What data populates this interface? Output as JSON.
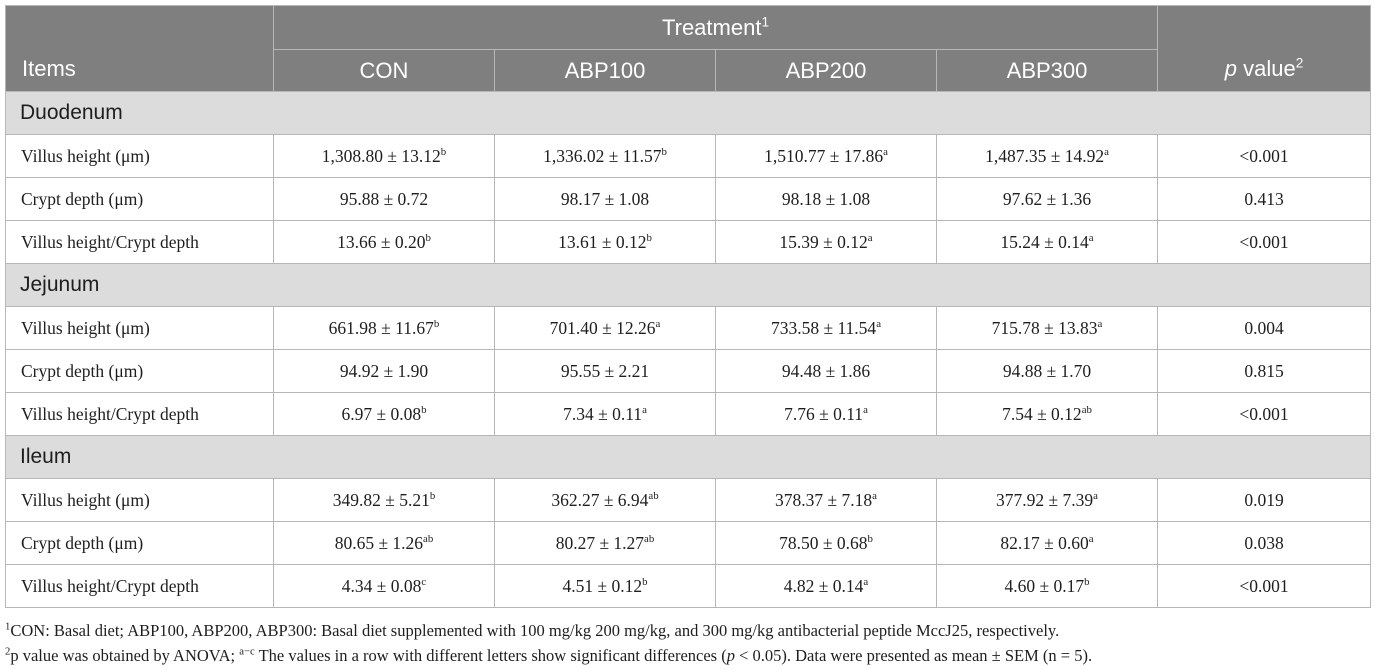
{
  "table": {
    "header": {
      "items_label": "Items",
      "treatment_label": "Treatment",
      "treatment_sup": "1",
      "groups": [
        "CON",
        "ABP100",
        "ABP200",
        "ABP300"
      ],
      "pvalue_italic": "p",
      "pvalue_label": " value",
      "pvalue_sup": "2"
    },
    "sections": [
      {
        "name": "Duodenum",
        "rows": [
          {
            "item": "Villus height (μm)",
            "cells": [
              {
                "v": "1,308.80 ± 13.12",
                "s": "b"
              },
              {
                "v": "1,336.02 ± 11.57",
                "s": "b"
              },
              {
                "v": "1,510.77 ± 17.86",
                "s": "a"
              },
              {
                "v": "1,487.35 ± 14.92",
                "s": "a"
              }
            ],
            "p": "<0.001"
          },
          {
            "item": "Crypt depth (μm)",
            "cells": [
              {
                "v": "95.88 ± 0.72",
                "s": ""
              },
              {
                "v": "98.17 ± 1.08",
                "s": ""
              },
              {
                "v": "98.18 ± 1.08",
                "s": ""
              },
              {
                "v": "97.62 ± 1.36",
                "s": ""
              }
            ],
            "p": "0.413"
          },
          {
            "item": "Villus height/Crypt depth",
            "cells": [
              {
                "v": "13.66 ± 0.20",
                "s": "b"
              },
              {
                "v": "13.61 ± 0.12",
                "s": "b"
              },
              {
                "v": "15.39 ± 0.12",
                "s": "a"
              },
              {
                "v": "15.24 ± 0.14",
                "s": "a"
              }
            ],
            "p": "<0.001"
          }
        ]
      },
      {
        "name": "Jejunum",
        "rows": [
          {
            "item": "Villus height (μm)",
            "cells": [
              {
                "v": "661.98 ± 11.67",
                "s": "b"
              },
              {
                "v": "701.40 ± 12.26",
                "s": "a"
              },
              {
                "v": "733.58 ± 11.54",
                "s": "a"
              },
              {
                "v": "715.78 ± 13.83",
                "s": "a"
              }
            ],
            "p": "0.004"
          },
          {
            "item": "Crypt depth (μm)",
            "cells": [
              {
                "v": "94.92 ± 1.90",
                "s": ""
              },
              {
                "v": "95.55 ± 2.21",
                "s": ""
              },
              {
                "v": "94.48 ± 1.86",
                "s": ""
              },
              {
                "v": "94.88 ± 1.70",
                "s": ""
              }
            ],
            "p": "0.815"
          },
          {
            "item": "Villus height/Crypt depth",
            "cells": [
              {
                "v": "6.97 ± 0.08",
                "s": "b"
              },
              {
                "v": "7.34 ± 0.11",
                "s": "a"
              },
              {
                "v": "7.76 ± 0.11",
                "s": "a"
              },
              {
                "v": "7.54 ± 0.12",
                "s": "ab"
              }
            ],
            "p": "<0.001"
          }
        ]
      },
      {
        "name": "Ileum",
        "rows": [
          {
            "item": "Villus height (μm)",
            "cells": [
              {
                "v": "349.82 ± 5.21",
                "s": "b"
              },
              {
                "v": "362.27 ± 6.94",
                "s": "ab"
              },
              {
                "v": "378.37 ± 7.18",
                "s": "a"
              },
              {
                "v": "377.92 ± 7.39",
                "s": "a"
              }
            ],
            "p": "0.019"
          },
          {
            "item": "Crypt depth (μm)",
            "cells": [
              {
                "v": "80.65 ± 1.26",
                "s": "ab"
              },
              {
                "v": "80.27 ± 1.27",
                "s": "ab"
              },
              {
                "v": "78.50 ± 0.68",
                "s": "b"
              },
              {
                "v": "82.17 ± 0.60",
                "s": "a"
              }
            ],
            "p": "0.038"
          },
          {
            "item": "Villus height/Crypt depth",
            "cells": [
              {
                "v": "4.34 ± 0.08",
                "s": "c"
              },
              {
                "v": "4.51 ± 0.12",
                "s": "b"
              },
              {
                "v": "4.82 ± 0.14",
                "s": "a"
              },
              {
                "v": "4.60 ± 0.17",
                "s": "b"
              }
            ],
            "p": "<0.001"
          }
        ]
      }
    ]
  },
  "footnotes": {
    "note1_sup": "1",
    "note1_text": "CON: Basal diet; ABP100, ABP200, ABP300: Basal diet supplemented with 100 mg/kg 200 mg/kg, and 300 mg/kg antibacterial peptide MccJ25, respectively.",
    "note2_sup": "2",
    "note2_text_a": "p value was obtained by ANOVA; ",
    "note2_sup_b": "a−c",
    "note2_text_b": " The values in a row with different letters show significant differences (",
    "note2_italic": "p",
    "note2_text_c": " < 0.05). Data were presented as mean ± SEM (n = 5)."
  }
}
